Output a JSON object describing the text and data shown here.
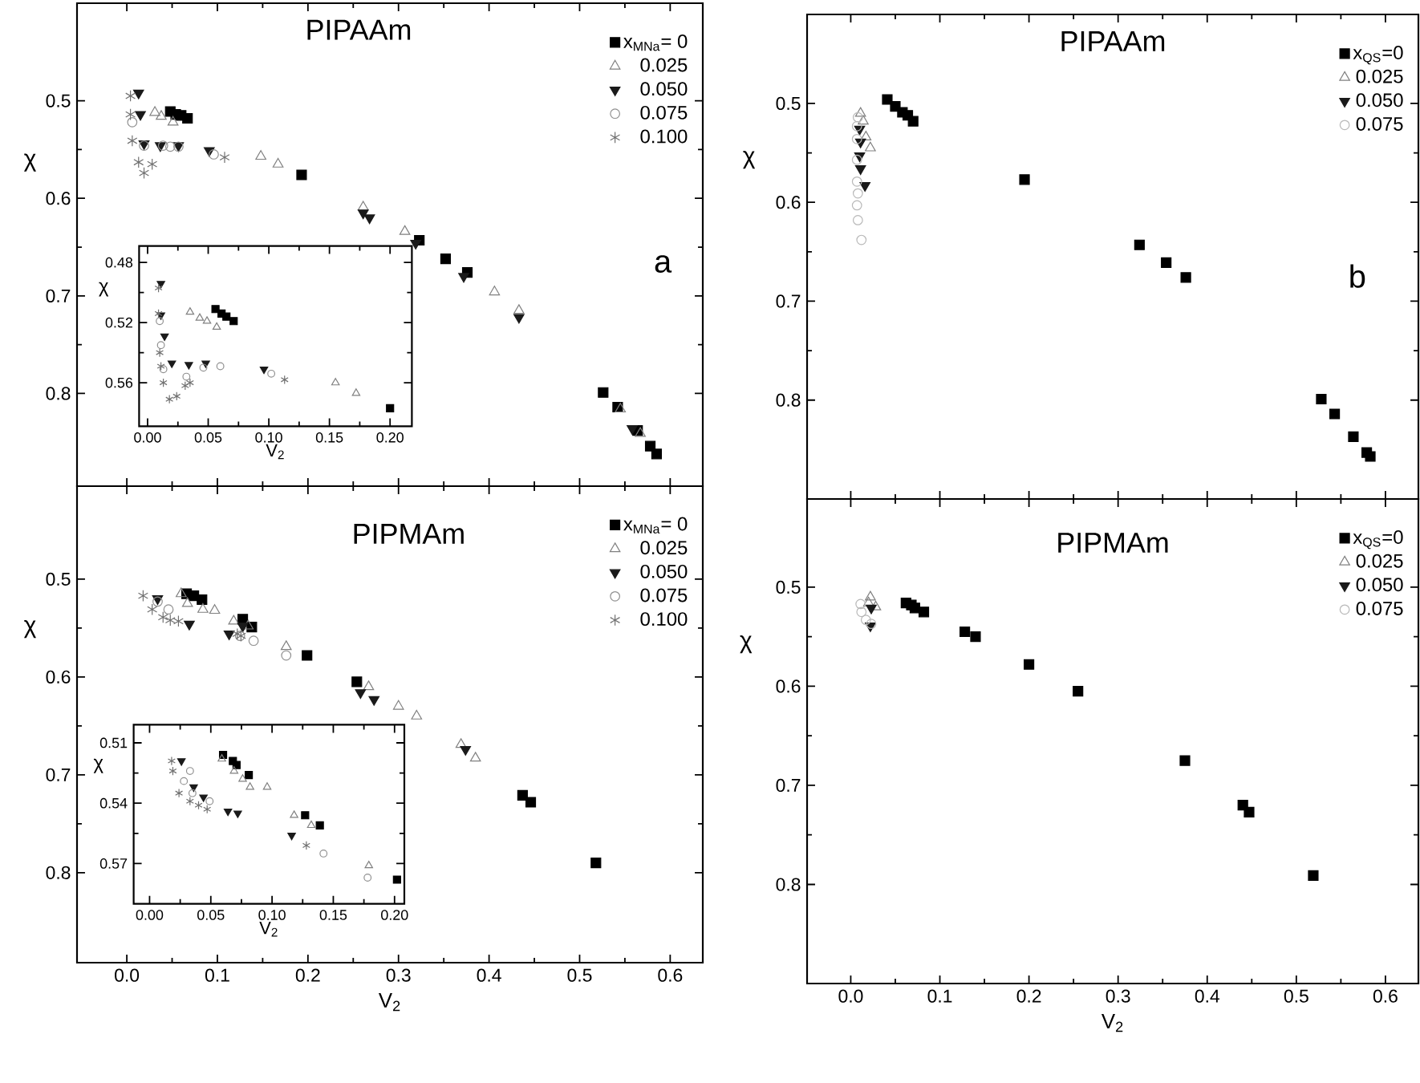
{
  "chart_data": [
    {
      "type": "scatter",
      "title": "PIPAAm",
      "ylabel": "χ",
      "annotations": [
        "a"
      ],
      "legend": "top right",
      "tick_labels": "y",
      "xlim": [
        -0.055,
        0.636
      ],
      "ylim": [
        0.895,
        0.4
      ],
      "xticks": [
        0,
        0.1,
        0.2,
        0.3,
        0.4,
        0.5,
        0.6
      ],
      "yticks": [
        0.5,
        0.6,
        0.7,
        0.8
      ],
      "series": [
        {
          "name": "x$_{MNa}$= 0",
          "color": "#000000",
          "marker": "square",
          "x": [
            0.048,
            0.054,
            0.06,
            0.067,
            0.193,
            0.323,
            0.352,
            0.376,
            0.526,
            0.542,
            0.564,
            0.578,
            0.585
          ],
          "values": [
            0.511,
            0.514,
            0.515,
            0.518,
            0.576,
            0.643,
            0.662,
            0.676,
            0.799,
            0.814,
            0.838,
            0.854,
            0.862
          ]
        },
        {
          "name": "0.025",
          "color": "#808080",
          "marker": "triangle",
          "x": [
            0.031,
            0.038,
            0.051,
            0.148,
            0.167,
            0.261,
            0.307,
            0.406,
            0.433,
            0.545,
            0.567
          ],
          "values": [
            0.512,
            0.516,
            0.522,
            0.557,
            0.565,
            0.609,
            0.634,
            0.696,
            0.715,
            0.816,
            0.841
          ]
        },
        {
          "name": "0.050",
          "color": "#1a1a1a",
          "marker": "triangle_down",
          "x": [
            0.013,
            0.015,
            0.019,
            0.037,
            0.057,
            0.091,
            0.261,
            0.268,
            0.319,
            0.372,
            0.433,
            0.558
          ],
          "values": [
            0.492,
            0.514,
            0.544,
            0.546,
            0.546,
            0.551,
            0.615,
            0.62,
            0.646,
            0.68,
            0.722,
            0.836
          ]
        },
        {
          "name": "0.075",
          "color": "#909090",
          "marker": "circle",
          "x": [
            0.006,
            0.019,
            0.04,
            0.048,
            0.057,
            0.096
          ],
          "values": [
            0.522,
            0.546,
            0.546,
            0.547,
            0.547,
            0.555
          ]
        },
        {
          "name": "0.100",
          "color": "#707070",
          "marker": "cross",
          "x": [
            0.004,
            0.004,
            0.006,
            0.013,
            0.019,
            0.028,
            0.108
          ],
          "values": [
            0.495,
            0.514,
            0.541,
            0.563,
            0.574,
            0.565,
            0.558
          ]
        }
      ]
    },
    {
      "type": "scatter",
      "xlabel": "V$_{2}$",
      "ylabel": "χ",
      "xlim": [
        -0.007,
        0.218
      ],
      "ylim": [
        0.589,
        0.469
      ],
      "xticks": [
        {
          "value": 0,
          "label": "0.00"
        },
        0.05,
        {
          "value": 0.1,
          "label": "0.10"
        },
        0.15,
        {
          "value": 0.2,
          "label": "0.20"
        }
      ],
      "yticks": [
        0.48,
        0.52,
        0.56
      ],
      "series": [
        {
          "color": "#000000",
          "marker": "square",
          "x": [
            0.056,
            0.061,
            0.065,
            0.071,
            0.2
          ],
          "values": [
            0.511,
            0.514,
            0.516,
            0.519,
            0.577
          ]
        },
        {
          "color": "#808080",
          "marker": "triangle",
          "x": [
            0.035,
            0.043,
            0.049,
            0.057,
            0.155,
            0.172
          ],
          "values": [
            0.513,
            0.517,
            0.519,
            0.523,
            0.56,
            0.567
          ]
        },
        {
          "color": "#1a1a1a",
          "marker": "triangle_down",
          "x": [
            0.011,
            0.011,
            0.014,
            0.02,
            0.034,
            0.048,
            0.096
          ],
          "values": [
            0.494,
            0.515,
            0.529,
            0.547,
            0.548,
            0.547,
            0.551
          ]
        },
        {
          "color": "#909090",
          "marker": "circle",
          "x": [
            0.01,
            0.011,
            0.013,
            0.032,
            0.046,
            0.06,
            0.102
          ],
          "values": [
            0.519,
            0.535,
            0.551,
            0.556,
            0.55,
            0.549,
            0.554
          ]
        },
        {
          "color": "#707070",
          "marker": "cross",
          "x": [
            0.009,
            0.009,
            0.01,
            0.011,
            0.013,
            0.018,
            0.024,
            0.031,
            0.035,
            0.113
          ],
          "values": [
            0.497,
            0.514,
            0.54,
            0.549,
            0.56,
            0.571,
            0.569,
            0.562,
            0.56,
            0.558
          ]
        }
      ]
    },
    {
      "type": "scatter",
      "title": "PIPAAm",
      "ylabel": "χ",
      "annotations": [
        "b"
      ],
      "legend": "top right",
      "tick_labels": "y",
      "xlim": [
        -0.049,
        0.637
      ],
      "ylim": [
        0.9,
        0.41
      ],
      "xticks": [
        0,
        0.1,
        0.2,
        0.3,
        0.4,
        0.5,
        0.6
      ],
      "yticks": [
        0.5,
        0.6,
        0.7,
        0.8
      ],
      "series": [
        {
          "name": "x$_{QS}$=0",
          "color": "#000000",
          "marker": "square",
          "x": [
            0.041,
            0.05,
            0.058,
            0.064,
            0.07,
            0.195,
            0.324,
            0.354,
            0.376,
            0.528,
            0.543,
            0.564,
            0.579,
            0.583
          ],
          "values": [
            0.496,
            0.503,
            0.509,
            0.512,
            0.518,
            0.577,
            0.643,
            0.661,
            0.676,
            0.799,
            0.814,
            0.837,
            0.853,
            0.857
          ]
        },
        {
          "name": "0.025",
          "color": "#808080",
          "marker": "triangle",
          "x": [
            0.011,
            0.014,
            0.017,
            0.022
          ],
          "values": [
            0.51,
            0.518,
            0.534,
            0.545
          ]
        },
        {
          "name": "0.050",
          "color": "#1a1a1a",
          "marker": "triangle_down",
          "x": [
            0.01,
            0.011,
            0.01,
            0.011,
            0.016
          ],
          "values": [
            0.526,
            0.539,
            0.553,
            0.566,
            0.583
          ]
        },
        {
          "name": "0.075",
          "color": "#b8b8b8",
          "marker": "circle",
          "x": [
            0.008,
            0.007,
            0.007,
            0.007,
            0.007,
            0.008,
            0.007,
            0.008,
            0.012
          ],
          "values": [
            0.514,
            0.523,
            0.536,
            0.557,
            0.579,
            0.591,
            0.603,
            0.618,
            0.638
          ]
        }
      ]
    },
    {
      "type": "scatter",
      "title": "PIPMAm",
      "xlabel": "V$_{2}$",
      "ylabel": "χ",
      "legend": "top right",
      "xlim": [
        -0.055,
        0.636
      ],
      "ylim": [
        0.892,
        0.405
      ],
      "xticks": [
        {
          "value": 0,
          "label": "0.0"
        },
        0.1,
        0.2,
        0.3,
        0.4,
        0.5,
        0.6
      ],
      "yticks": [
        0.5,
        0.6,
        0.7,
        0.8
      ],
      "series": [
        {
          "name": "x$_{MNa}$= 0",
          "color": "#000000",
          "marker": "square",
          "x": [
            0.066,
            0.074,
            0.083,
            0.128,
            0.138,
            0.199,
            0.254,
            0.437,
            0.446,
            0.518
          ],
          "values": [
            0.515,
            0.517,
            0.521,
            0.541,
            0.549,
            0.578,
            0.605,
            0.721,
            0.728,
            0.79
          ]
        },
        {
          "name": "0.025",
          "color": "#808080",
          "marker": "triangle",
          "x": [
            0.06,
            0.067,
            0.084,
            0.097,
            0.118,
            0.134,
            0.176,
            0.267,
            0.3,
            0.32,
            0.369,
            0.385
          ],
          "values": [
            0.515,
            0.525,
            0.531,
            0.532,
            0.543,
            0.548,
            0.569,
            0.61,
            0.63,
            0.64,
            0.669,
            0.683
          ]
        },
        {
          "name": "0.050",
          "color": "#1a1a1a",
          "marker": "triangle_down",
          "x": [
            0.034,
            0.069,
            0.113,
            0.128,
            0.258,
            0.273,
            0.374
          ],
          "values": [
            0.52,
            0.546,
            0.556,
            0.548,
            0.616,
            0.623,
            0.674
          ]
        },
        {
          "name": "0.075",
          "color": "#909090",
          "marker": "circle",
          "x": [
            0.034,
            0.046,
            0.125,
            0.14,
            0.176
          ],
          "values": [
            0.523,
            0.531,
            0.558,
            0.563,
            0.578
          ]
        },
        {
          "name": "0.100",
          "color": "#707070",
          "marker": "cross",
          "x": [
            0.018,
            0.028,
            0.04,
            0.048,
            0.057,
            0.122,
            0.126
          ],
          "values": [
            0.517,
            0.531,
            0.539,
            0.542,
            0.543,
            0.556,
            0.558
          ]
        }
      ]
    },
    {
      "type": "scatter",
      "xlabel": "V$_{2}$",
      "ylabel": "χ",
      "xlim": [
        -0.013,
        0.208
      ],
      "ylim": [
        0.59,
        0.501
      ],
      "xticks": [
        {
          "value": 0,
          "label": "0.00"
        },
        0.05,
        {
          "value": 0.1,
          "label": "0.10"
        },
        0.15,
        {
          "value": 0.2,
          "label": "0.20"
        }
      ],
      "yticks": [
        0.51,
        0.54,
        0.57
      ],
      "series": [
        {
          "color": "#000000",
          "marker": "square",
          "x": [
            0.06,
            0.068,
            0.071,
            0.081,
            0.127,
            0.139,
            0.202
          ],
          "values": [
            0.516,
            0.519,
            0.521,
            0.526,
            0.546,
            0.551,
            0.578
          ]
        },
        {
          "color": "#808080",
          "marker": "triangle",
          "x": [
            0.059,
            0.069,
            0.076,
            0.082,
            0.096,
            0.118,
            0.132,
            0.179
          ],
          "values": [
            0.518,
            0.524,
            0.528,
            0.532,
            0.532,
            0.546,
            0.551,
            0.571
          ]
        },
        {
          "color": "#1a1a1a",
          "marker": "triangle_down",
          "x": [
            0.026,
            0.036,
            0.044,
            0.064,
            0.072,
            0.116
          ],
          "values": [
            0.519,
            0.532,
            0.537,
            0.544,
            0.545,
            0.556
          ]
        },
        {
          "color": "#909090",
          "marker": "circle",
          "x": [
            0.033,
            0.028,
            0.035,
            0.049,
            0.142,
            0.178
          ],
          "values": [
            0.524,
            0.529,
            0.535,
            0.539,
            0.565,
            0.577
          ]
        },
        {
          "color": "#707070",
          "marker": "cross",
          "x": [
            0.018,
            0.019,
            0.024,
            0.033,
            0.04,
            0.047,
            0.128
          ],
          "values": [
            0.519,
            0.524,
            0.535,
            0.539,
            0.541,
            0.543,
            0.561
          ]
        }
      ]
    },
    {
      "type": "scatter",
      "title": "PIPMAm",
      "xlabel": "V$_{2}$",
      "ylabel": "χ",
      "legend": "top right",
      "xlim": [
        -0.049,
        0.637
      ],
      "ylim": [
        0.9,
        0.411
      ],
      "xticks": [
        {
          "value": 0,
          "label": "0.0"
        },
        0.1,
        0.2,
        0.3,
        0.4,
        0.5,
        0.6
      ],
      "yticks": [
        0.5,
        0.6,
        0.7,
        0.8
      ],
      "series": [
        {
          "name": "x$_{QS}$=0",
          "color": "#000000",
          "marker": "square",
          "x": [
            0.062,
            0.068,
            0.072,
            0.082,
            0.128,
            0.14,
            0.2,
            0.255,
            0.375,
            0.44,
            0.447,
            0.519
          ],
          "values": [
            0.516,
            0.518,
            0.521,
            0.525,
            0.545,
            0.55,
            0.578,
            0.605,
            0.675,
            0.72,
            0.727,
            0.791
          ]
        },
        {
          "name": "0.025",
          "color": "#808080",
          "marker": "triangle",
          "x": [
            0.02,
            0.022,
            0.028
          ],
          "values": [
            0.516,
            0.51,
            0.52
          ]
        },
        {
          "name": "0.050",
          "color": "#1a1a1a",
          "marker": "triangle_down",
          "x": [
            0.023,
            0.022
          ],
          "values": [
            0.521,
            0.539
          ]
        },
        {
          "name": "0.075",
          "color": "#b8b8b8",
          "marker": "circle",
          "x": [
            0.011,
            0.012,
            0.017,
            0.023
          ],
          "values": [
            0.517,
            0.525,
            0.533,
            0.537
          ]
        }
      ]
    }
  ]
}
